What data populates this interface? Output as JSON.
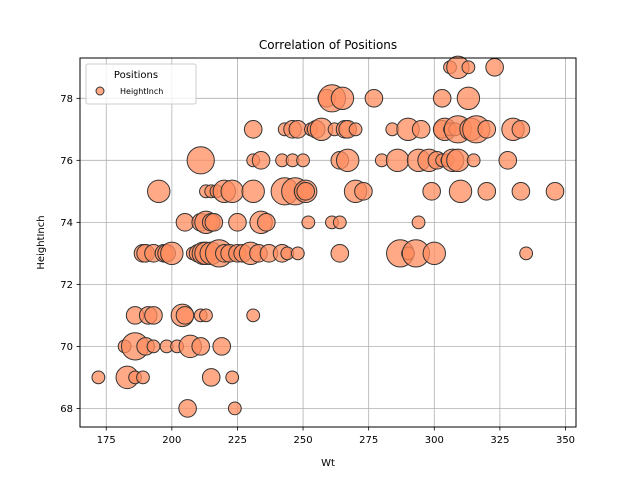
{
  "chart_data": {
    "type": "scatter",
    "title": "Correlation of Positions",
    "xlabel": "Wt",
    "ylabel": "HeightInch",
    "xlim": [
      165,
      354
    ],
    "ylim": [
      67.4,
      79.3
    ],
    "xticks": [
      175,
      200,
      225,
      250,
      275,
      300,
      325,
      350
    ],
    "yticks": [
      68,
      70,
      72,
      74,
      76,
      78
    ],
    "grid": true,
    "legend": {
      "title": "Positions",
      "position": "top-left",
      "entries": [
        "HeightInch"
      ]
    },
    "marker_color": "#ff8c5f",
    "edge_color": "#333333",
    "series": [
      {
        "name": "HeightInch",
        "points": [
          {
            "x": 172,
            "y": 69,
            "s": 1
          },
          {
            "x": 183,
            "y": 69,
            "s": 3
          },
          {
            "x": 186,
            "y": 69,
            "s": 1
          },
          {
            "x": 189,
            "y": 69,
            "s": 1
          },
          {
            "x": 182,
            "y": 70,
            "s": 1
          },
          {
            "x": 186,
            "y": 70,
            "s": 4
          },
          {
            "x": 190,
            "y": 70,
            "s": 2
          },
          {
            "x": 193,
            "y": 70,
            "s": 1
          },
          {
            "x": 198,
            "y": 70,
            "s": 1
          },
          {
            "x": 202,
            "y": 70,
            "s": 1
          },
          {
            "x": 207,
            "y": 70,
            "s": 3
          },
          {
            "x": 211,
            "y": 70,
            "s": 2
          },
          {
            "x": 219,
            "y": 70,
            "s": 2
          },
          {
            "x": 186,
            "y": 71,
            "s": 2
          },
          {
            "x": 191,
            "y": 71,
            "s": 2
          },
          {
            "x": 193,
            "y": 71,
            "s": 2
          },
          {
            "x": 204,
            "y": 71,
            "s": 3
          },
          {
            "x": 205,
            "y": 71,
            "s": 2
          },
          {
            "x": 211,
            "y": 71,
            "s": 1
          },
          {
            "x": 213,
            "y": 71,
            "s": 1
          },
          {
            "x": 231,
            "y": 71,
            "s": 1
          },
          {
            "x": 189,
            "y": 73,
            "s": 2
          },
          {
            "x": 190,
            "y": 73,
            "s": 2
          },
          {
            "x": 193,
            "y": 73,
            "s": 2
          },
          {
            "x": 197,
            "y": 73,
            "s": 2
          },
          {
            "x": 198,
            "y": 73,
            "s": 2
          },
          {
            "x": 200,
            "y": 73,
            "s": 3
          },
          {
            "x": 208,
            "y": 73,
            "s": 1
          },
          {
            "x": 210,
            "y": 73,
            "s": 2
          },
          {
            "x": 212,
            "y": 73,
            "s": 3
          },
          {
            "x": 213,
            "y": 73,
            "s": 3
          },
          {
            "x": 215,
            "y": 73,
            "s": 3
          },
          {
            "x": 218,
            "y": 73,
            "s": 4
          },
          {
            "x": 220,
            "y": 73,
            "s": 2
          },
          {
            "x": 222,
            "y": 73,
            "s": 2
          },
          {
            "x": 225,
            "y": 73,
            "s": 2
          },
          {
            "x": 227,
            "y": 73,
            "s": 2
          },
          {
            "x": 230,
            "y": 73,
            "s": 3
          },
          {
            "x": 233,
            "y": 73,
            "s": 2
          },
          {
            "x": 237,
            "y": 73,
            "s": 2
          },
          {
            "x": 242,
            "y": 73,
            "s": 2
          },
          {
            "x": 244,
            "y": 73,
            "s": 1
          },
          {
            "x": 248,
            "y": 73,
            "s": 1
          },
          {
            "x": 264,
            "y": 73,
            "s": 2
          },
          {
            "x": 287,
            "y": 73,
            "s": 4
          },
          {
            "x": 290,
            "y": 73,
            "s": 1
          },
          {
            "x": 293,
            "y": 73,
            "s": 4
          },
          {
            "x": 300,
            "y": 73,
            "s": 3
          },
          {
            "x": 335,
            "y": 73,
            "s": 1
          },
          {
            "x": 205,
            "y": 74,
            "s": 2
          },
          {
            "x": 211,
            "y": 74,
            "s": 2
          },
          {
            "x": 213,
            "y": 74,
            "s": 3
          },
          {
            "x": 215,
            "y": 74,
            "s": 2
          },
          {
            "x": 216,
            "y": 74,
            "s": 2
          },
          {
            "x": 225,
            "y": 74,
            "s": 2
          },
          {
            "x": 234,
            "y": 74,
            "s": 3
          },
          {
            "x": 236,
            "y": 74,
            "s": 2
          },
          {
            "x": 252,
            "y": 74,
            "s": 1
          },
          {
            "x": 261,
            "y": 74,
            "s": 1
          },
          {
            "x": 264,
            "y": 74,
            "s": 1
          },
          {
            "x": 294,
            "y": 74,
            "s": 1
          },
          {
            "x": 195,
            "y": 75,
            "s": 3
          },
          {
            "x": 213,
            "y": 75,
            "s": 1
          },
          {
            "x": 215,
            "y": 75,
            "s": 1
          },
          {
            "x": 217,
            "y": 75,
            "s": 1
          },
          {
            "x": 220,
            "y": 75,
            "s": 3
          },
          {
            "x": 223,
            "y": 75,
            "s": 3
          },
          {
            "x": 231,
            "y": 75,
            "s": 3
          },
          {
            "x": 243,
            "y": 75,
            "s": 4
          },
          {
            "x": 247,
            "y": 75,
            "s": 4
          },
          {
            "x": 250,
            "y": 75,
            "s": 2
          },
          {
            "x": 251,
            "y": 75,
            "s": 3
          },
          {
            "x": 251,
            "y": 75,
            "s": 2
          },
          {
            "x": 270,
            "y": 75,
            "s": 3
          },
          {
            "x": 273,
            "y": 75,
            "s": 2
          },
          {
            "x": 299,
            "y": 75,
            "s": 2
          },
          {
            "x": 310,
            "y": 75,
            "s": 3
          },
          {
            "x": 320,
            "y": 75,
            "s": 2
          },
          {
            "x": 333,
            "y": 75,
            "s": 2
          },
          {
            "x": 346,
            "y": 75,
            "s": 2
          },
          {
            "x": 211,
            "y": 76,
            "s": 4
          },
          {
            "x": 231,
            "y": 76,
            "s": 1
          },
          {
            "x": 234,
            "y": 76,
            "s": 2
          },
          {
            "x": 242,
            "y": 76,
            "s": 1
          },
          {
            "x": 246,
            "y": 76,
            "s": 1
          },
          {
            "x": 250,
            "y": 76,
            "s": 1
          },
          {
            "x": 264,
            "y": 76,
            "s": 2
          },
          {
            "x": 267,
            "y": 76,
            "s": 3
          },
          {
            "x": 280,
            "y": 76,
            "s": 1
          },
          {
            "x": 286,
            "y": 76,
            "s": 3
          },
          {
            "x": 294,
            "y": 76,
            "s": 3
          },
          {
            "x": 298,
            "y": 76,
            "s": 3
          },
          {
            "x": 301,
            "y": 76,
            "s": 2
          },
          {
            "x": 303,
            "y": 76,
            "s": 1
          },
          {
            "x": 305,
            "y": 76,
            "s": 1
          },
          {
            "x": 307,
            "y": 76,
            "s": 3
          },
          {
            "x": 309,
            "y": 76,
            "s": 3
          },
          {
            "x": 315,
            "y": 76,
            "s": 1
          },
          {
            "x": 328,
            "y": 76,
            "s": 2
          },
          {
            "x": 231,
            "y": 77,
            "s": 2
          },
          {
            "x": 243,
            "y": 77,
            "s": 1
          },
          {
            "x": 246,
            "y": 77,
            "s": 2
          },
          {
            "x": 248,
            "y": 77,
            "s": 2
          },
          {
            "x": 253,
            "y": 77,
            "s": 1
          },
          {
            "x": 255,
            "y": 77,
            "s": 2
          },
          {
            "x": 257,
            "y": 77,
            "s": 3
          },
          {
            "x": 262,
            "y": 77,
            "s": 1
          },
          {
            "x": 266,
            "y": 77,
            "s": 2
          },
          {
            "x": 267,
            "y": 77,
            "s": 2
          },
          {
            "x": 270,
            "y": 77,
            "s": 1
          },
          {
            "x": 284,
            "y": 77,
            "s": 1
          },
          {
            "x": 290,
            "y": 77,
            "s": 3
          },
          {
            "x": 295,
            "y": 77,
            "s": 2
          },
          {
            "x": 303,
            "y": 77,
            "s": 2
          },
          {
            "x": 304,
            "y": 77,
            "s": 3
          },
          {
            "x": 306,
            "y": 77,
            "s": 1
          },
          {
            "x": 308,
            "y": 77,
            "s": 1
          },
          {
            "x": 309,
            "y": 77,
            "s": 4
          },
          {
            "x": 314,
            "y": 77,
            "s": 3
          },
          {
            "x": 316,
            "y": 77,
            "s": 4
          },
          {
            "x": 320,
            "y": 77,
            "s": 2
          },
          {
            "x": 330,
            "y": 77,
            "s": 3
          },
          {
            "x": 333,
            "y": 77,
            "s": 2
          },
          {
            "x": 259,
            "y": 78,
            "s": 2
          },
          {
            "x": 261,
            "y": 78,
            "s": 4
          },
          {
            "x": 265,
            "y": 78,
            "s": 3
          },
          {
            "x": 277,
            "y": 78,
            "s": 2
          },
          {
            "x": 303,
            "y": 78,
            "s": 2
          },
          {
            "x": 313,
            "y": 78,
            "s": 3
          },
          {
            "x": 306,
            "y": 79,
            "s": 1
          },
          {
            "x": 309,
            "y": 79,
            "s": 3
          },
          {
            "x": 313,
            "y": 79,
            "s": 1
          },
          {
            "x": 323,
            "y": 79,
            "s": 2
          },
          {
            "x": 206,
            "y": 68,
            "s": 2
          },
          {
            "x": 224,
            "y": 68,
            "s": 1
          },
          {
            "x": 223,
            "y": 69,
            "s": 1
          },
          {
            "x": 215,
            "y": 69,
            "s": 2
          }
        ]
      }
    ]
  }
}
